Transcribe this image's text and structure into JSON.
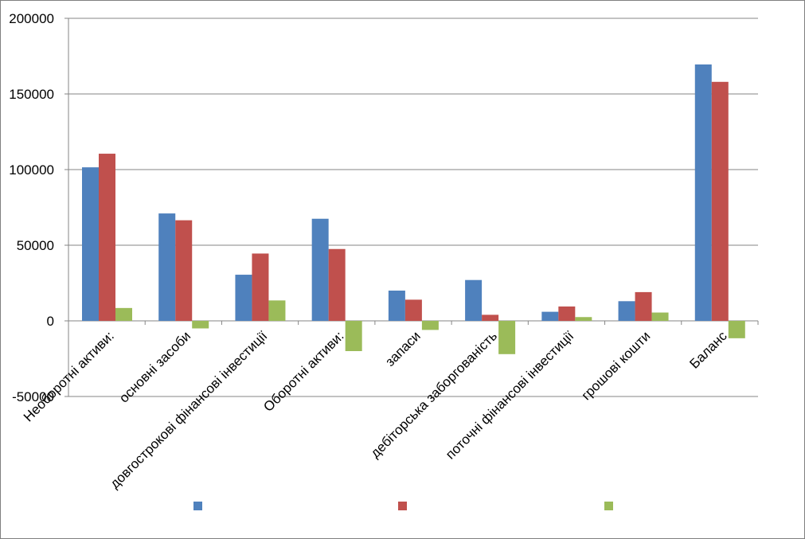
{
  "chart_data": {
    "type": "bar",
    "categories": [
      "Необоротні активи:",
      "основні засоби",
      "довгострокові фінансові інвестиції",
      "Оборотні активи:",
      "запаси",
      "дебіторська заборгованість",
      "поточні фінансові інвестиції",
      "грошові кошти",
      "Баланс"
    ],
    "series": [
      {
        "color": "#4f81bd",
        "values": [
          101500,
          71000,
          30500,
          67500,
          20000,
          27000,
          6000,
          13000,
          169500
        ]
      },
      {
        "color": "#c0504d",
        "values": [
          110500,
          66500,
          44500,
          47500,
          14000,
          4000,
          9500,
          19000,
          158000
        ]
      },
      {
        "color": "#9bbb59",
        "values": [
          8500,
          -5000,
          13500,
          -20000,
          -6000,
          -22000,
          2500,
          5500,
          -11500
        ]
      }
    ],
    "ylim": [
      -50000,
      200000
    ],
    "yticks": [
      "-50000",
      "0",
      "50000",
      "100000",
      "150000",
      "200000"
    ],
    "title": "",
    "xlabel": "",
    "ylabel": "",
    "grid": true,
    "legend_position": "bottom"
  }
}
